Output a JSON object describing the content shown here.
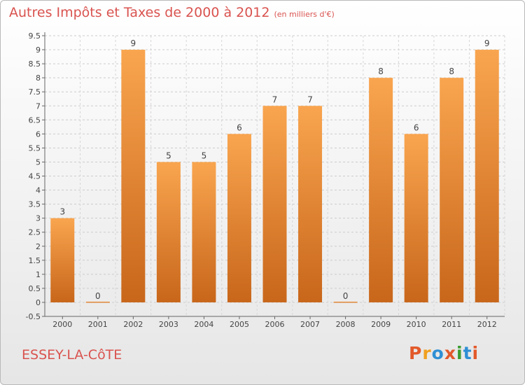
{
  "header": {
    "title": "Autres Impôts et Taxes de 2000 à 2012",
    "unit": "(en milliers d'€)"
  },
  "footer": {
    "place": "ESSEY-LA-CôTE",
    "logo": "Proxiti"
  },
  "colors": {
    "title": "#d9534f",
    "bar_light": "#f9a54f",
    "bar_dark": "#c8661a",
    "logo": [
      "#e2592a",
      "#f0a020",
      "#2f8fd4",
      "#e2592a",
      "#3b9c2f",
      "#2f8fd4",
      "#e2592a"
    ]
  },
  "chart_data": {
    "type": "bar",
    "title": "Autres Impôts et Taxes de 2000 à 2012",
    "subtitle": "(en milliers d'€)",
    "xlabel": "",
    "ylabel": "",
    "categories": [
      "2000",
      "2001",
      "2002",
      "2003",
      "2004",
      "2005",
      "2006",
      "2007",
      "2008",
      "2009",
      "2010",
      "2011",
      "2012"
    ],
    "values": [
      3,
      0,
      9,
      5,
      5,
      6,
      7,
      7,
      0,
      8,
      6,
      8,
      9
    ],
    "ylim": [
      -0.5,
      9.5
    ],
    "yticks": [
      "-0.5",
      "0",
      "0.5",
      "1",
      "1.5",
      "2",
      "2.5",
      "3",
      "3.5",
      "4",
      "4.5",
      "5",
      "5.5",
      "6",
      "6.5",
      "7",
      "7.5",
      "8",
      "8.5",
      "9",
      "9.5"
    ],
    "grid": true,
    "legend": "none"
  }
}
